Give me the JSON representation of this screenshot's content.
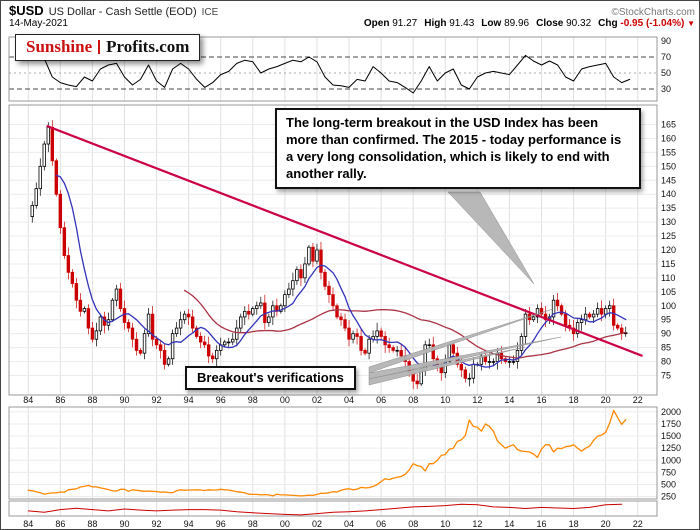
{
  "header": {
    "symbol": "$USD",
    "title": "US Dollar - Cash Settle (EOD)",
    "exchange": "ICE",
    "credit": "©StockCharts.com",
    "date": "14-May-2021",
    "quote": {
      "open_label": "Open",
      "open_value": "91.27",
      "high_label": "High",
      "high_value": "91.43",
      "low_label": "Low",
      "low_value": "89.96",
      "close_label": "Close",
      "close_value": "90.32",
      "chg_label": "Chg",
      "chg_value": "-0.95 (-1.04%)",
      "chg_arrow": "▼"
    }
  },
  "logo": {
    "part1": "Sunshine",
    "part2": "Profits.com"
  },
  "annotations": {
    "main_note": "The long-term breakout in the USD Index has been more than confirmed. The 2015 - today performance is a very long consolidation, which is likely to end with another rally.",
    "breakout_note": "Breakout's verifications"
  },
  "colors": {
    "up_candle": "#000000",
    "down_candle": "#cc0000",
    "ma_fast": "#3333bb",
    "ma_slow": "#aa3344",
    "trendline": "#cc0044",
    "gold": "#ff8800",
    "strip": "#cc0000",
    "grid": "#e0e0e0",
    "border": "#999999"
  },
  "axis": {
    "years": [
      1984,
      1986,
      1988,
      1990,
      1992,
      1994,
      1996,
      1998,
      2000,
      2002,
      2004,
      2006,
      2008,
      2010,
      2012,
      2014,
      2016,
      2018,
      2020,
      2022
    ],
    "year_labels": [
      "84",
      "86",
      "88",
      "90",
      "92",
      "94",
      "96",
      "98",
      "00",
      "02",
      "04",
      "06",
      "08",
      "10",
      "12",
      "14",
      "16",
      "18",
      "20",
      "22"
    ]
  },
  "chart_data": [
    {
      "type": "line",
      "name": "momentum-oscillator",
      "panel": "top",
      "x_start": 1984.0,
      "x_step": 0.5,
      "values": [
        72,
        78,
        68,
        45,
        38,
        35,
        33,
        45,
        40,
        55,
        60,
        62,
        45,
        35,
        42,
        60,
        40,
        32,
        55,
        62,
        55,
        42,
        32,
        38,
        48,
        52,
        62,
        66,
        64,
        50,
        55,
        58,
        62,
        66,
        64,
        70,
        64,
        45,
        35,
        34,
        32,
        42,
        40,
        58,
        50,
        40,
        38,
        32,
        25,
        40,
        58,
        40,
        50,
        55,
        35,
        30,
        45,
        50,
        52,
        50,
        48,
        60,
        72,
        65,
        60,
        65,
        60,
        45,
        40,
        55,
        58,
        60,
        62,
        45,
        38,
        42
      ],
      "y_ticks": [
        90,
        70,
        50,
        30
      ],
      "dashed_levels": [
        70,
        30
      ],
      "mid_level": 50,
      "ylim": [
        15,
        95
      ],
      "color": "#000000"
    },
    {
      "type": "candlestick",
      "name": "USD Index",
      "panel": "main",
      "x_start": 1984.0,
      "x_step": 0.25,
      "close": [
        132,
        136,
        142,
        150,
        158,
        164,
        152,
        140,
        128,
        118,
        112,
        108,
        102,
        98,
        99,
        92,
        88,
        91,
        96,
        93,
        95,
        102,
        106,
        99,
        94,
        92,
        88,
        84,
        83,
        90,
        97,
        88,
        86,
        84,
        79,
        81,
        90,
        92,
        95,
        97,
        96,
        92,
        89,
        87,
        86,
        82,
        81,
        84,
        86,
        87,
        87,
        88,
        92,
        96,
        98,
        97,
        99,
        100,
        101,
        94,
        96,
        100,
        98,
        100,
        104,
        106,
        109,
        113,
        110,
        115,
        121,
        116,
        120,
        112,
        107,
        104,
        100,
        96,
        95,
        92,
        88,
        90,
        89,
        84,
        83,
        88,
        89,
        91,
        89,
        86,
        85,
        84,
        84,
        82,
        80,
        76,
        73,
        72,
        77,
        86,
        86,
        81,
        78,
        76,
        80,
        86,
        83,
        79,
        77,
        74,
        74,
        79,
        79,
        82,
        80,
        80,
        80,
        83,
        81,
        80,
        80,
        80,
        84,
        89,
        97,
        95,
        96,
        99,
        97,
        95,
        96,
        102,
        100,
        97,
        93,
        92,
        90,
        94,
        95,
        97,
        96,
        97,
        99,
        97,
        99,
        100,
        93,
        92,
        90,
        90.3
      ],
      "y_ticks": [
        165,
        160,
        155,
        150,
        145,
        140,
        135,
        130,
        125,
        120,
        115,
        110,
        105,
        100,
        95,
        90,
        85,
        80,
        75
      ],
      "ylim": [
        68,
        172
      ],
      "ma_fast": {
        "window": 8,
        "color": "#3333bb"
      },
      "ma_slow": {
        "window": 40,
        "color": "#aa3344"
      },
      "trendline": {
        "x1": 1985.15,
        "y1": 164.5,
        "x2": 2022.3,
        "y2": 82,
        "color": "#cc0044"
      }
    },
    {
      "type": "line",
      "name": "Gold",
      "panel": "lower",
      "x_start": 1984.0,
      "x_step": 0.25,
      "values": [
        380,
        370,
        350,
        330,
        300,
        315,
        325,
        325,
        345,
        340,
        390,
        400,
        410,
        450,
        460,
        480,
        450,
        450,
        430,
        415,
        395,
        370,
        365,
        400,
        400,
        360,
        390,
        380,
        370,
        360,
        365,
        360,
        355,
        340,
        345,
        335,
        330,
        370,
        390,
        380,
        385,
        385,
        390,
        385,
        375,
        390,
        385,
        385,
        400,
        390,
        385,
        370,
        350,
        340,
        325,
        300,
        295,
        295,
        285,
        290,
        285,
        265,
        300,
        285,
        285,
        280,
        275,
        270,
        265,
        270,
        280,
        275,
        295,
        320,
        315,
        330,
        350,
        345,
        380,
        400,
        410,
        390,
        405,
        440,
        430,
        435,
        460,
        500,
        560,
        620,
        600,
        630,
        650,
        665,
        710,
        800,
        930,
        890,
        870,
        780,
        930,
        930,
        1000,
        1100,
        1120,
        1230,
        1250,
        1390,
        1420,
        1510,
        1830,
        1700,
        1680,
        1600,
        1750,
        1700,
        1600,
        1400,
        1320,
        1250,
        1290,
        1320,
        1220,
        1190,
        1180,
        1170,
        1130,
        1060,
        1230,
        1320,
        1320,
        1170,
        1250,
        1240,
        1280,
        1290,
        1320,
        1250,
        1190,
        1250,
        1290,
        1410,
        1500,
        1520,
        1580,
        1770,
        2030,
        1880,
        1740,
        1840
      ],
      "y_ticks": [
        2000,
        1750,
        1500,
        1250,
        1000,
        750,
        500,
        250
      ],
      "ylim": [
        200,
        2100
      ],
      "color": "#ff8800"
    },
    {
      "type": "line",
      "name": "bottom-indicator",
      "panel": "strip",
      "x_start": 1984.0,
      "x_step": 1,
      "values": [
        55,
        50,
        60,
        65,
        60,
        55,
        62,
        58,
        55,
        58,
        60,
        60,
        58,
        52,
        48,
        45,
        42,
        40,
        45,
        50,
        52,
        55,
        60,
        65,
        70,
        72,
        75,
        80,
        78,
        70,
        68,
        64,
        68,
        66,
        64,
        68,
        78,
        80
      ],
      "ylim": [
        36,
        92
      ],
      "color": "#cc0000"
    }
  ]
}
